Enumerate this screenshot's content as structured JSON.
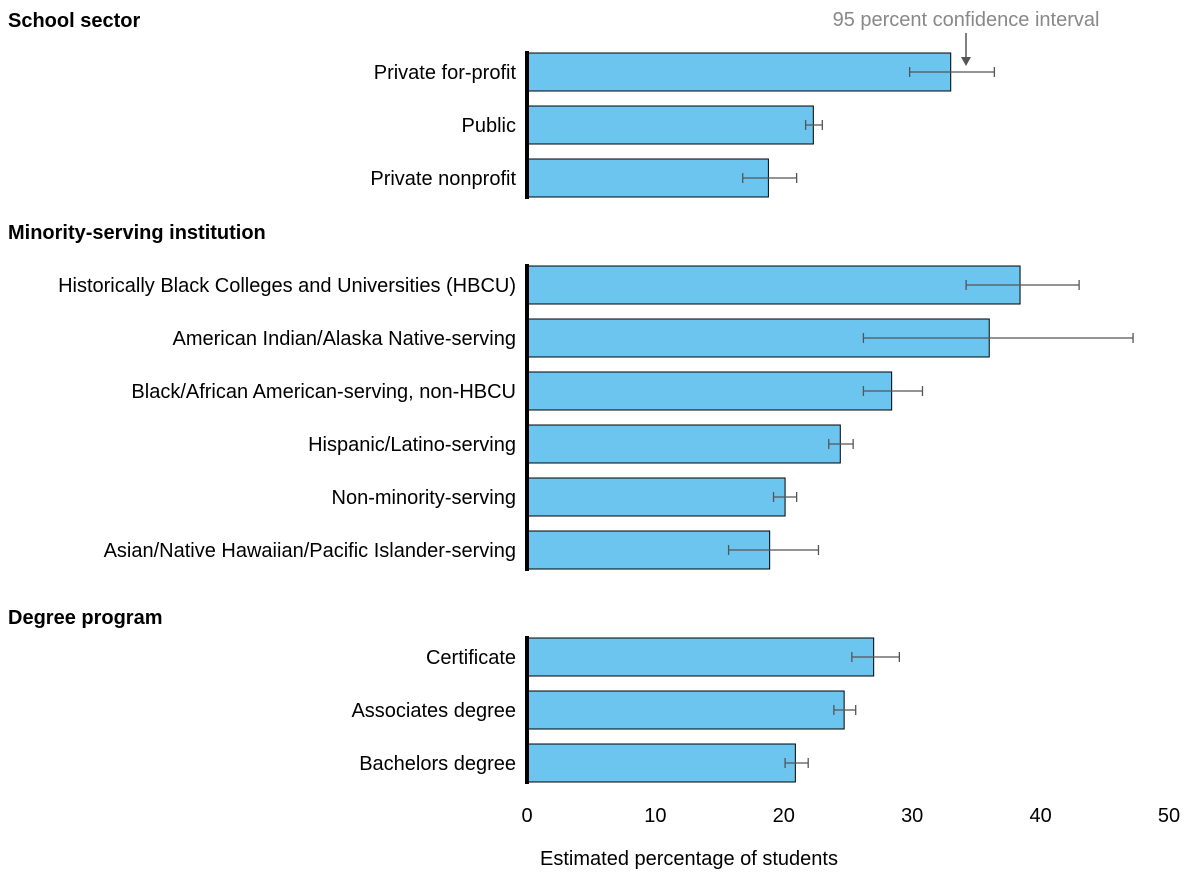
{
  "chart_data": {
    "type": "bar",
    "orientation": "horizontal",
    "xlabel": "Estimated percentage of students",
    "xlim": [
      0,
      50
    ],
    "xticks": [
      0,
      10,
      20,
      30,
      40,
      50
    ],
    "annotation": "95 percent confidence interval",
    "colors": {
      "bar": "#6bc5ee",
      "bar_stroke": "#000000",
      "error": "#555555",
      "annotation": "#888888"
    },
    "groups": [
      {
        "title": "School sector",
        "items": [
          {
            "label": "Private for-profit",
            "value": 33.0,
            "ci": [
              29.8,
              36.4
            ]
          },
          {
            "label": "Public",
            "value": 22.3,
            "ci": [
              21.7,
              23.0
            ]
          },
          {
            "label": "Private nonprofit",
            "value": 18.8,
            "ci": [
              16.8,
              21.0
            ]
          }
        ]
      },
      {
        "title": "Minority-serving institution",
        "items": [
          {
            "label": "Historically Black Colleges and Universities (HBCU)",
            "value": 38.4,
            "ci": [
              34.2,
              43.0
            ]
          },
          {
            "label": "American Indian/Alaska Native-serving",
            "value": 36.0,
            "ci": [
              26.2,
              47.2
            ]
          },
          {
            "label": "Black/African American-serving, non-HBCU",
            "value": 28.4,
            "ci": [
              26.2,
              30.8
            ]
          },
          {
            "label": "Hispanic/Latino-serving",
            "value": 24.4,
            "ci": [
              23.5,
              25.4
            ]
          },
          {
            "label": "Non-minority-serving",
            "value": 20.1,
            "ci": [
              19.2,
              21.0
            ]
          },
          {
            "label": "Asian/Native Hawaiian/Pacific Islander-serving",
            "value": 18.9,
            "ci": [
              15.7,
              22.7
            ]
          }
        ]
      },
      {
        "title": "Degree program",
        "items": [
          {
            "label": "Certificate",
            "value": 27.0,
            "ci": [
              25.3,
              29.0
            ]
          },
          {
            "label": "Associates degree",
            "value": 24.7,
            "ci": [
              23.9,
              25.6
            ]
          },
          {
            "label": "Bachelors degree",
            "value": 20.9,
            "ci": [
              20.1,
              21.9
            ]
          }
        ]
      }
    ]
  }
}
